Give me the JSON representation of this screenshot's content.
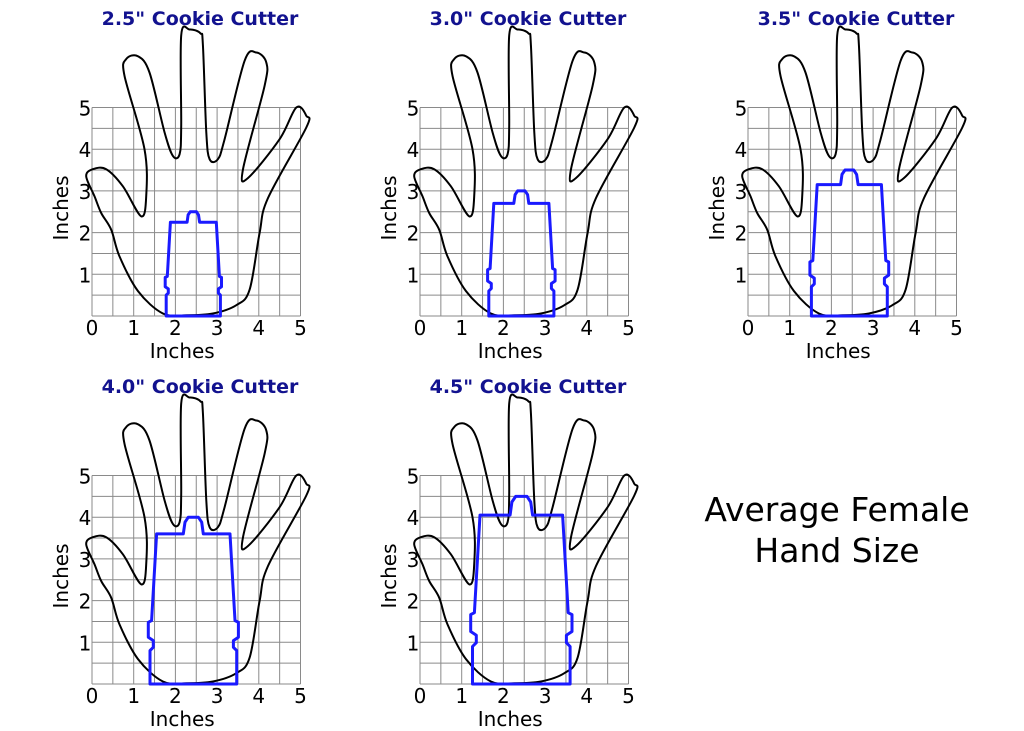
{
  "panels": [
    {
      "title": "2.5\" Cookie Cutter",
      "cutter_size_in": 2.5
    },
    {
      "title": "3.0\" Cookie Cutter",
      "cutter_size_in": 3.0
    },
    {
      "title": "3.5\" Cookie Cutter",
      "cutter_size_in": 3.5
    },
    {
      "title": "4.0\" Cookie Cutter",
      "cutter_size_in": 4.0
    },
    {
      "title": "4.5\" Cookie Cutter",
      "cutter_size_in": 4.5
    }
  ],
  "axes": {
    "x_label": "Inches",
    "y_label": "Inches",
    "ticks": [
      "0",
      "1",
      "2",
      "3",
      "4",
      "5"
    ]
  },
  "caption": {
    "line1": "Average Female",
    "line2": "Hand Size"
  },
  "colors": {
    "cutter": "#1a1aff",
    "title": "#12128f",
    "hand": "#000000",
    "grid": "#8a8a8a"
  }
}
